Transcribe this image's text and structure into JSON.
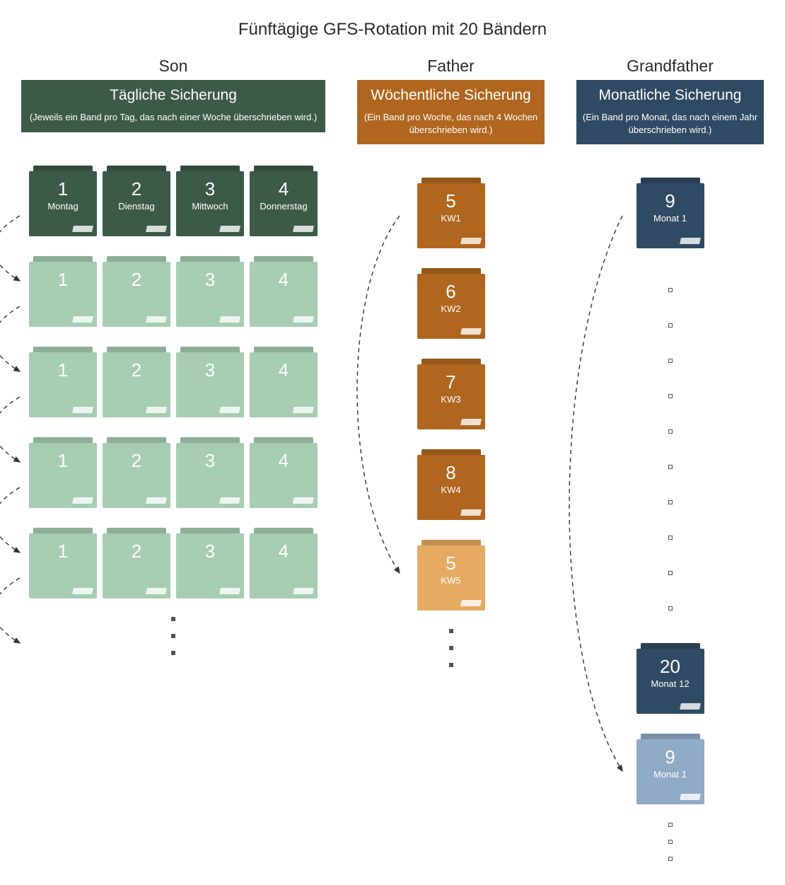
{
  "title": "Fünftägige GFS-Rotation mit 20 Bändern",
  "colors": {
    "son_dark": "#3c5b47",
    "son_light": "#a6cdb2",
    "father_dark": "#b0661f",
    "father_light": "#e7aa63",
    "grand_dark": "#2f4a63",
    "grand_light": "#8fabc6",
    "text": "#2a2a2a",
    "arrow": "#333333"
  },
  "son": {
    "label": "Son",
    "header_main": "Tägliche Sicherung",
    "header_sub": "(Jeweils ein Band pro Tag, das nach einer Woche überschrieben wird.)",
    "tapes_active": [
      {
        "num": "1",
        "label": "Montag"
      },
      {
        "num": "2",
        "label": "Dienstag"
      },
      {
        "num": "3",
        "label": "Mittwoch"
      },
      {
        "num": "4",
        "label": "Donnerstag"
      }
    ],
    "faded_rows": 4,
    "faded_nums": [
      "1",
      "2",
      "3",
      "4"
    ]
  },
  "father": {
    "label": "Father",
    "header_main": "Wöchentliche Sicherung",
    "header_sub": "(Ein Band pro Woche, das nach 4 Wochen überschrieben wird.)",
    "tapes": [
      {
        "num": "5",
        "label": "KW1",
        "shade": "dark"
      },
      {
        "num": "6",
        "label": "KW2",
        "shade": "dark"
      },
      {
        "num": "7",
        "label": "KW3",
        "shade": "dark"
      },
      {
        "num": "8",
        "label": "KW4",
        "shade": "dark"
      },
      {
        "num": "5",
        "label": "KW5",
        "shade": "light"
      }
    ]
  },
  "grand": {
    "label": "Grandfather",
    "header_main": "Monatliche Sicherung",
    "header_sub": "(Ein Band pro Monat, das nach einem Jahr überschrieben wird.)",
    "top_tape": {
      "num": "9",
      "label": "Monat 1"
    },
    "bottom_tape": {
      "num": "20",
      "label": "Monat 12"
    },
    "reuse_tape": {
      "num": "9",
      "label": "Monat 1"
    }
  }
}
